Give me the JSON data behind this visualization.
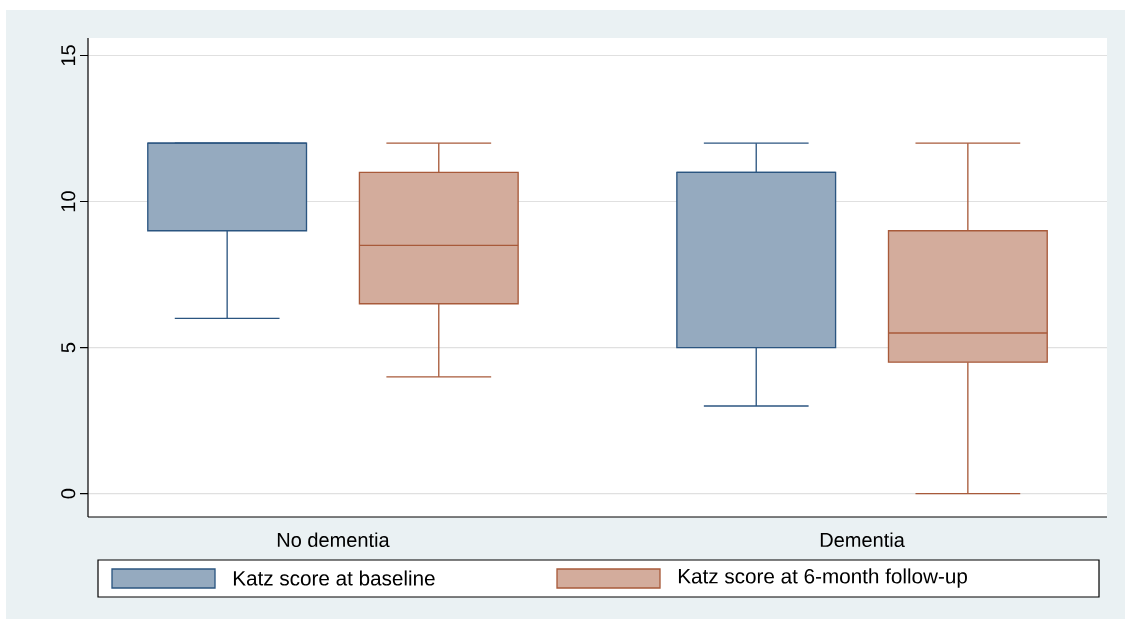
{
  "chart_data": {
    "type": "box",
    "categories": [
      "No dementia",
      "Dementia"
    ],
    "series": [
      {
        "name": "Katz score at baseline",
        "color": "#2b5580",
        "boxes": [
          {
            "low": 6,
            "q1": 9,
            "median": 12,
            "q3": 12,
            "high": 12
          },
          {
            "low": 3,
            "q1": 5,
            "median": 11,
            "q3": 11,
            "high": 12
          }
        ]
      },
      {
        "name": "Katz score at 6-month follow-up",
        "color": "#a85a3a",
        "boxes": [
          {
            "low": 4,
            "q1": 6.5,
            "median": 8.5,
            "q3": 11,
            "high": 12
          },
          {
            "low": 0,
            "q1": 4.5,
            "median": 5.5,
            "q3": 9,
            "high": 12
          }
        ]
      }
    ],
    "ylim": [
      -0.8,
      15.6
    ],
    "yticks": [
      0,
      5,
      10,
      15
    ],
    "grid": "y",
    "legend": "bottom"
  }
}
